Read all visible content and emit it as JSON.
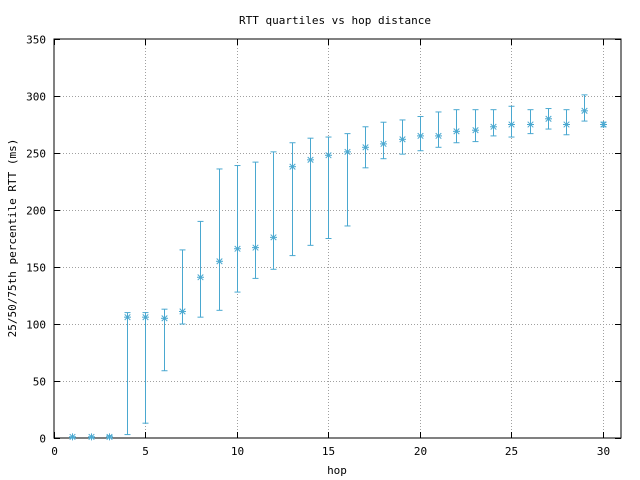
{
  "chart_data": {
    "type": "scatter",
    "title": "RTT quartiles vs hop distance",
    "xlabel": "hop",
    "ylabel": "25/50/75th percentile RTT (ms)",
    "xlim": [
      0,
      31
    ],
    "ylim": [
      0,
      350
    ],
    "xticks": [
      0,
      5,
      10,
      15,
      20,
      25,
      30
    ],
    "yticks": [
      0,
      50,
      100,
      150,
      200,
      250,
      300,
      350
    ],
    "grid": true,
    "legend": "none",
    "colors": {
      "series": "#4aa8d0",
      "grid": "#a0a0a0",
      "axis": "#000000"
    },
    "series": [
      {
        "marker": "asterisk",
        "points": [
          {
            "x": 1,
            "median": 1,
            "low": 0,
            "high": 1
          },
          {
            "x": 2,
            "median": 1,
            "low": 0,
            "high": 1
          },
          {
            "x": 3,
            "median": 1,
            "low": 0,
            "high": 2
          },
          {
            "x": 4,
            "median": 106,
            "low": 3,
            "high": 110
          },
          {
            "x": 5,
            "median": 106,
            "low": 13,
            "high": 110
          },
          {
            "x": 6,
            "median": 105,
            "low": 59,
            "high": 113
          },
          {
            "x": 7,
            "median": 111,
            "low": 100,
            "high": 165
          },
          {
            "x": 8,
            "median": 141,
            "low": 106,
            "high": 190
          },
          {
            "x": 9,
            "median": 155,
            "low": 112,
            "high": 236
          },
          {
            "x": 10,
            "median": 166,
            "low": 128,
            "high": 239
          },
          {
            "x": 11,
            "median": 167,
            "low": 140,
            "high": 242
          },
          {
            "x": 12,
            "median": 176,
            "low": 148,
            "high": 251
          },
          {
            "x": 13,
            "median": 238,
            "low": 160,
            "high": 259
          },
          {
            "x": 14,
            "median": 244,
            "low": 169,
            "high": 263
          },
          {
            "x": 15,
            "median": 248,
            "low": 175,
            "high": 264
          },
          {
            "x": 16,
            "median": 251,
            "low": 186,
            "high": 267
          },
          {
            "x": 17,
            "median": 255,
            "low": 237,
            "high": 273
          },
          {
            "x": 18,
            "median": 258,
            "low": 245,
            "high": 277
          },
          {
            "x": 19,
            "median": 262,
            "low": 249,
            "high": 279
          },
          {
            "x": 20,
            "median": 265,
            "low": 252,
            "high": 282
          },
          {
            "x": 21,
            "median": 265,
            "low": 255,
            "high": 286
          },
          {
            "x": 22,
            "median": 269,
            "low": 259,
            "high": 288
          },
          {
            "x": 23,
            "median": 270,
            "low": 260,
            "high": 288
          },
          {
            "x": 24,
            "median": 273,
            "low": 265,
            "high": 288
          },
          {
            "x": 25,
            "median": 275,
            "low": 264,
            "high": 291
          },
          {
            "x": 26,
            "median": 275,
            "low": 267,
            "high": 288
          },
          {
            "x": 27,
            "median": 280,
            "low": 271,
            "high": 289
          },
          {
            "x": 28,
            "median": 275,
            "low": 266,
            "high": 288
          },
          {
            "x": 29,
            "median": 287,
            "low": 278,
            "high": 301
          },
          {
            "x": 30,
            "median": 275,
            "low": 273,
            "high": 277
          }
        ]
      }
    ]
  }
}
